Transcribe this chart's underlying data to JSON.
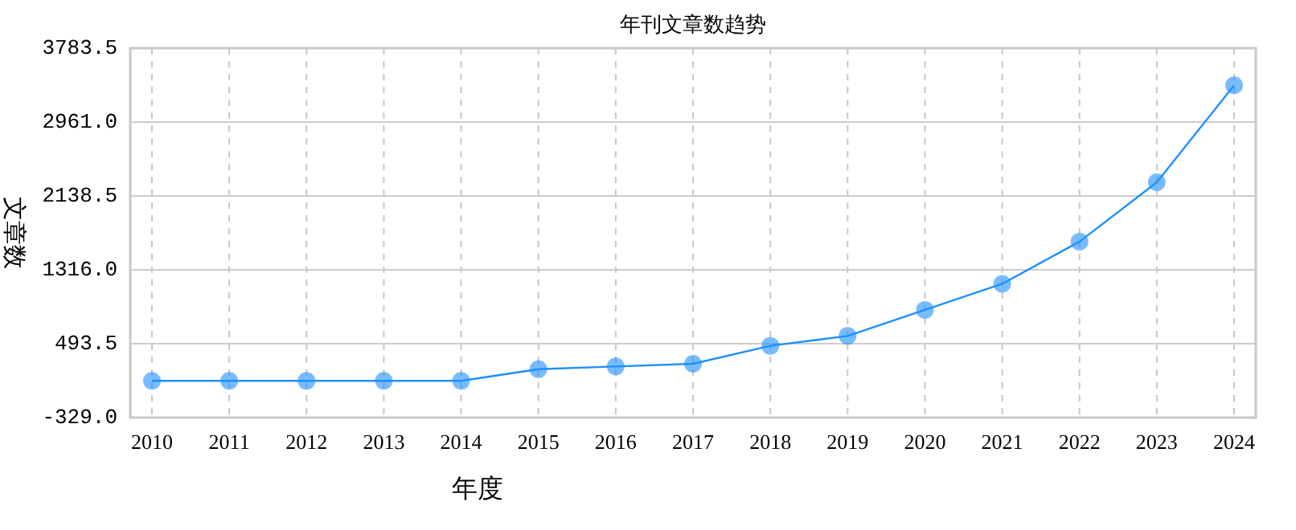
{
  "chart_data": {
    "type": "line",
    "title": "年刊文章数趋势",
    "xlabel": "年度",
    "ylabel": "文章数",
    "categories": [
      "2010",
      "2011",
      "2012",
      "2013",
      "2014",
      "2015",
      "2016",
      "2017",
      "2018",
      "2019",
      "2020",
      "2021",
      "2022",
      "2023",
      "2024"
    ],
    "series": [
      {
        "color": "#1e90ff",
        "values": [
          80,
          80,
          80,
          80,
          80,
          210,
          240,
          270,
          470,
          580,
          870,
          1160,
          1630,
          2290,
          3370
        ]
      }
    ],
    "ylim": [
      -329,
      3783.5
    ],
    "yticks": [
      {
        "value": -329,
        "label": "-329.0"
      },
      {
        "value": 493.5,
        "label": "493.5"
      },
      {
        "value": 1316,
        "label": "1316.0"
      },
      {
        "value": 2138.5,
        "label": "2138.5"
      },
      {
        "value": 2961,
        "label": "2961.0"
      },
      {
        "value": 3783.5,
        "label": "3783.5"
      }
    ],
    "grid": true,
    "marker": "circle",
    "line_style": "solid"
  }
}
